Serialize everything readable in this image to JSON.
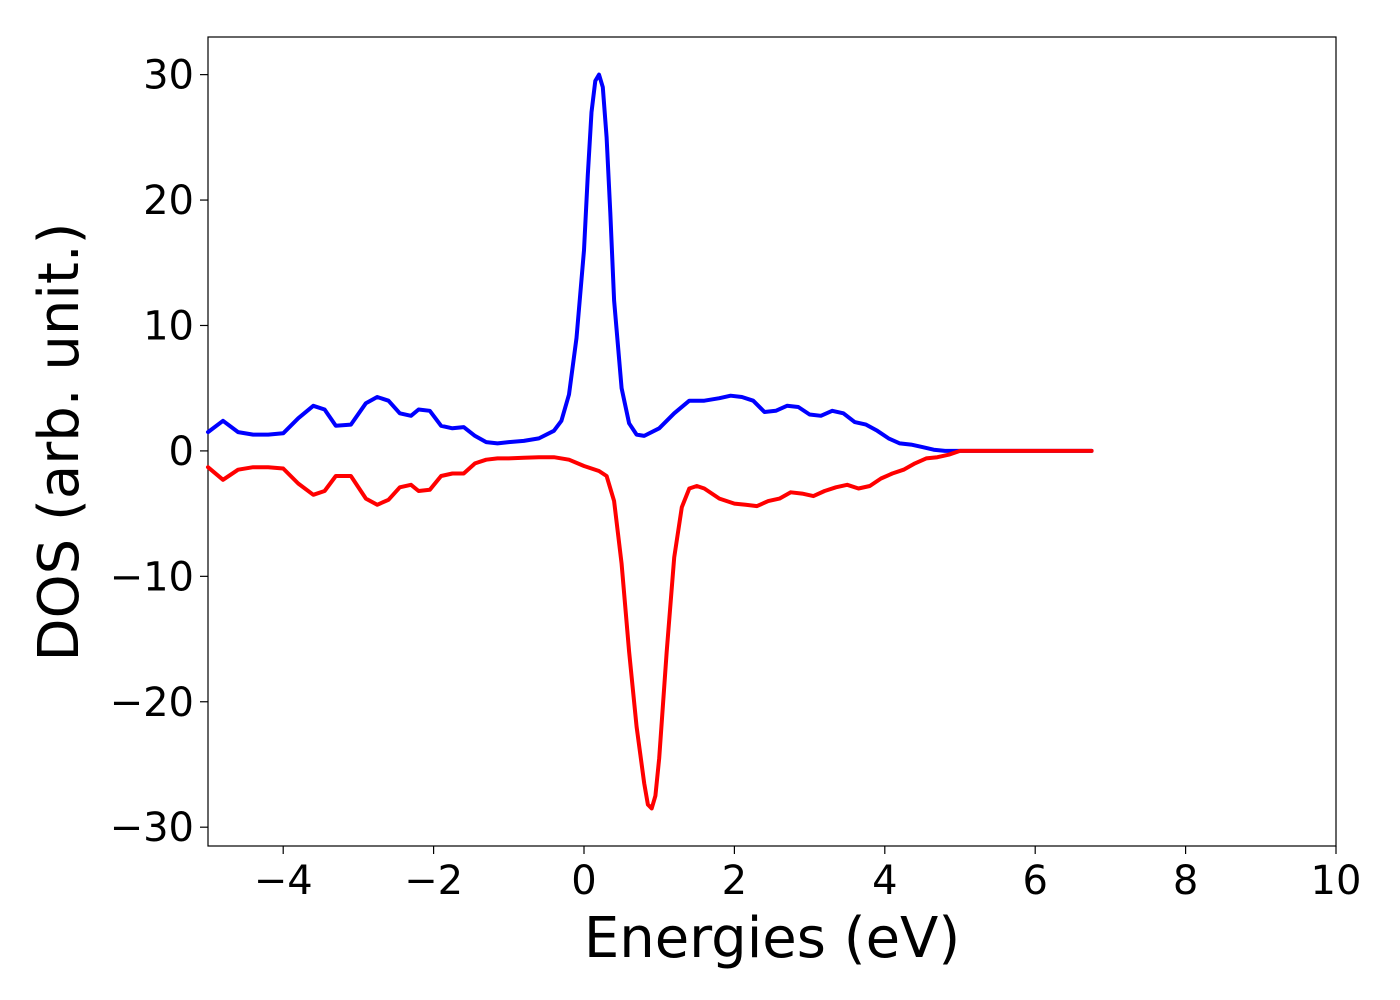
{
  "chart_data": {
    "type": "line",
    "title": "",
    "xlabel": "Energies (eV)",
    "ylabel": "DOS (arb. unit.)",
    "xlim": [
      -5,
      10
    ],
    "ylim": [
      -31.5,
      33
    ],
    "xticks": [
      -4,
      -2,
      0,
      2,
      4,
      6,
      8,
      10
    ],
    "yticks": [
      -30,
      -20,
      -10,
      0,
      10,
      20,
      30
    ],
    "xtick_labels": [
      "−4",
      "−2",
      "0",
      "2",
      "4",
      "6",
      "8",
      "10"
    ],
    "ytick_labels": [
      "−30",
      "−20",
      "−10",
      "0",
      "10",
      "20",
      "30"
    ],
    "grid": false,
    "legend": "none",
    "series": [
      {
        "color": "#0000ff",
        "x": [
          -5.0,
          -4.8,
          -4.6,
          -4.4,
          -4.2,
          -4.0,
          -3.8,
          -3.6,
          -3.45,
          -3.3,
          -3.1,
          -2.9,
          -2.75,
          -2.6,
          -2.45,
          -2.3,
          -2.2,
          -2.05,
          -1.9,
          -1.75,
          -1.6,
          -1.45,
          -1.3,
          -1.15,
          -1.0,
          -0.8,
          -0.6,
          -0.4,
          -0.3,
          -0.2,
          -0.1,
          0.0,
          0.05,
          0.1,
          0.15,
          0.2,
          0.25,
          0.3,
          0.35,
          0.4,
          0.5,
          0.6,
          0.7,
          0.8,
          1.0,
          1.2,
          1.4,
          1.6,
          1.8,
          1.95,
          2.1,
          2.25,
          2.4,
          2.55,
          2.7,
          2.85,
          3.0,
          3.15,
          3.3,
          3.45,
          3.6,
          3.75,
          3.9,
          4.05,
          4.2,
          4.35,
          4.5,
          4.65,
          4.8,
          4.95,
          5.1,
          5.5,
          6.0,
          6.5,
          6.75
        ],
        "y": [
          1.5,
          2.4,
          1.5,
          1.3,
          1.3,
          1.4,
          2.6,
          3.6,
          3.3,
          2.0,
          2.1,
          3.8,
          4.3,
          4.0,
          3.0,
          2.8,
          3.3,
          3.2,
          2.0,
          1.8,
          1.9,
          1.2,
          0.7,
          0.6,
          0.7,
          0.8,
          1.0,
          1.6,
          2.4,
          4.5,
          9.0,
          16.0,
          22.0,
          27.0,
          29.5,
          30.0,
          29.0,
          25.0,
          19.0,
          12.0,
          5.0,
          2.2,
          1.3,
          1.2,
          1.8,
          3.0,
          4.0,
          4.0,
          4.2,
          4.4,
          4.3,
          4.0,
          3.1,
          3.2,
          3.6,
          3.5,
          2.9,
          2.8,
          3.2,
          3.0,
          2.3,
          2.1,
          1.6,
          1.0,
          0.6,
          0.5,
          0.3,
          0.1,
          0.0,
          0.0,
          0.0,
          0.0,
          0.0,
          0.0,
          0.0
        ]
      },
      {
        "color": "#ff0000",
        "x": [
          -5.0,
          -4.8,
          -4.6,
          -4.4,
          -4.2,
          -4.0,
          -3.8,
          -3.6,
          -3.45,
          -3.3,
          -3.1,
          -2.9,
          -2.75,
          -2.6,
          -2.45,
          -2.3,
          -2.2,
          -2.05,
          -1.9,
          -1.75,
          -1.6,
          -1.45,
          -1.3,
          -1.15,
          -1.0,
          -0.8,
          -0.6,
          -0.4,
          -0.2,
          0.0,
          0.2,
          0.3,
          0.4,
          0.5,
          0.6,
          0.7,
          0.8,
          0.85,
          0.9,
          0.95,
          1.0,
          1.1,
          1.2,
          1.3,
          1.4,
          1.5,
          1.6,
          1.8,
          2.0,
          2.15,
          2.3,
          2.45,
          2.6,
          2.75,
          2.9,
          3.05,
          3.2,
          3.35,
          3.5,
          3.65,
          3.8,
          3.95,
          4.1,
          4.25,
          4.4,
          4.55,
          4.7,
          4.85,
          5.0,
          5.5,
          6.0,
          6.5,
          6.75
        ],
        "y": [
          -1.3,
          -2.3,
          -1.5,
          -1.3,
          -1.3,
          -1.4,
          -2.6,
          -3.5,
          -3.2,
          -2.0,
          -2.0,
          -3.8,
          -4.3,
          -3.9,
          -2.9,
          -2.7,
          -3.2,
          -3.1,
          -2.0,
          -1.8,
          -1.8,
          -1.0,
          -0.7,
          -0.6,
          -0.6,
          -0.55,
          -0.5,
          -0.5,
          -0.7,
          -1.2,
          -1.6,
          -2.0,
          -4.0,
          -9.0,
          -16.0,
          -22.0,
          -26.5,
          -28.2,
          -28.5,
          -27.5,
          -24.5,
          -16.0,
          -8.5,
          -4.5,
          -3.0,
          -2.8,
          -3.0,
          -3.8,
          -4.2,
          -4.3,
          -4.4,
          -4.0,
          -3.8,
          -3.3,
          -3.4,
          -3.6,
          -3.2,
          -2.9,
          -2.7,
          -3.0,
          -2.8,
          -2.2,
          -1.8,
          -1.5,
          -1.0,
          -0.6,
          -0.5,
          -0.3,
          0.0,
          0.0,
          0.0,
          0.0,
          0.0
        ]
      }
    ]
  }
}
